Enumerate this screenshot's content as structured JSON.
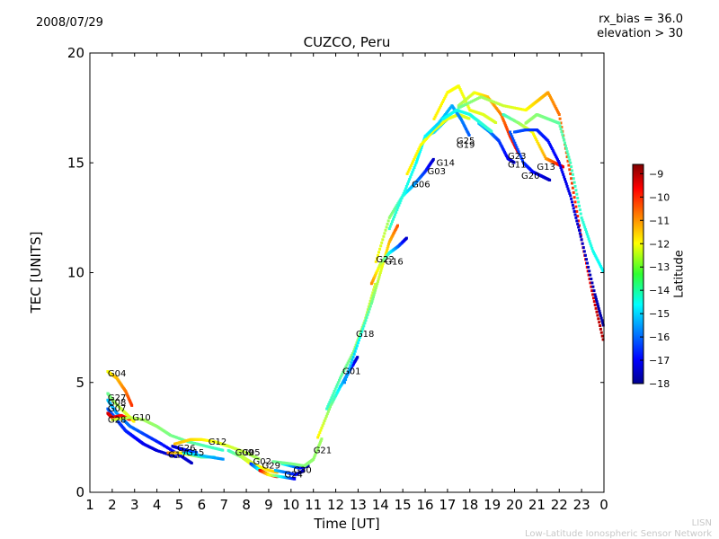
{
  "header": {
    "date": "2008/07/29",
    "rx_bias": "rx_bias = 36.0",
    "elevation": "elevation > 30"
  },
  "footer": {
    "credit_line1": "LISN",
    "credit_line2": "Low-Latitude Ionospheric Sensor Network"
  },
  "chart_data": {
    "type": "scatter",
    "title": "CUZCO, Peru",
    "xlabel": "Time [UT]",
    "ylabel": "TEC [UNITS]",
    "xlim": [
      1,
      24
    ],
    "ylim": [
      0,
      20
    ],
    "x_ticks": [
      1,
      2,
      3,
      4,
      5,
      6,
      7,
      8,
      9,
      10,
      11,
      12,
      13,
      14,
      15,
      16,
      17,
      18,
      19,
      20,
      21,
      22,
      23,
      24
    ],
    "x_tick_labels": [
      "1",
      "2",
      "3",
      "4",
      "5",
      "6",
      "7",
      "8",
      "9",
      "10",
      "11",
      "12",
      "13",
      "14",
      "15",
      "16",
      "17",
      "18",
      "19",
      "20",
      "21",
      "22",
      "23",
      "0"
    ],
    "y_ticks": [
      0,
      5,
      10,
      15,
      20
    ],
    "grid": false,
    "colorbar": {
      "label": "Latitude",
      "range": [
        -18,
        -8.6
      ],
      "ticks": [
        -9,
        -10,
        -11,
        -12,
        -13,
        -14,
        -15,
        -16,
        -17,
        -18
      ],
      "colormap": [
        "#00008f",
        "#0000ff",
        "#0080ff",
        "#00ffff",
        "#80ff80",
        "#ffff00",
        "#ff8000",
        "#ff0000",
        "#800000"
      ]
    },
    "series": [
      {
        "name": "G04",
        "label_at": [
          1.8,
          5.4
        ],
        "lat_start": -12.2,
        "lat_end": -10.2,
        "x": [
          1.8,
          2.2,
          2.6,
          2.9
        ],
        "y": [
          5.5,
          5.2,
          4.6,
          3.9
        ]
      },
      {
        "name": "G27",
        "label_at": [
          1.8,
          4.3
        ],
        "lat_start": -13.5,
        "lat_end": -12.0,
        "x": [
          1.8,
          2.1,
          2.6,
          3.0
        ],
        "y": [
          4.5,
          4.1,
          3.6,
          3.2
        ]
      },
      {
        "name": "G08",
        "label_at": [
          1.8,
          4.1
        ],
        "lat_start": -15.0,
        "lat_end": -17.5,
        "x": [
          1.8,
          2.2,
          2.8,
          3.5,
          4.2,
          5.0,
          5.6
        ],
        "y": [
          4.2,
          3.6,
          3.0,
          2.6,
          2.2,
          1.7,
          1.3
        ]
      },
      {
        "name": "G07",
        "label_at": [
          1.8,
          3.8
        ],
        "lat_start": -16.0,
        "lat_end": -17.5,
        "x": [
          1.8,
          2.2,
          2.6,
          3.0,
          3.4,
          4.0,
          4.9
        ],
        "y": [
          3.8,
          3.3,
          2.8,
          2.5,
          2.2,
          1.9,
          1.6
        ]
      },
      {
        "name": "G28",
        "label_at": [
          1.8,
          3.3
        ],
        "lat_start": -9.4,
        "lat_end": -10.0,
        "x": [
          1.8,
          2.0,
          2.4,
          2.8
        ],
        "y": [
          3.6,
          3.4,
          3.5,
          3.3
        ]
      },
      {
        "name": "G10",
        "label_at": [
          2.9,
          3.4
        ],
        "lat_start": -12.5,
        "lat_end": -14.0,
        "x": [
          2.0,
          2.8,
          3.4,
          4.0,
          4.6,
          5.4,
          6.2,
          7.0
        ],
        "y": [
          3.3,
          3.4,
          3.3,
          3.0,
          2.6,
          2.3,
          2.1,
          1.9
        ]
      },
      {
        "name": "G26",
        "label_at": [
          4.9,
          2.0
        ],
        "lat_start": -17.5,
        "lat_end": -16.0,
        "x": [
          4.7,
          5.0,
          5.4,
          5.8
        ],
        "y": [
          2.1,
          2.0,
          1.9,
          1.8
        ]
      },
      {
        "name": "G17",
        "label_at": [
          4.5,
          1.7
        ],
        "lat_start": -11.0,
        "lat_end": -14.5,
        "x": [
          4.5,
          5.0,
          5.5,
          6.0,
          6.6
        ],
        "y": [
          1.8,
          1.8,
          1.7,
          1.6,
          1.6
        ]
      },
      {
        "name": "G15",
        "label_at": [
          5.3,
          1.8
        ],
        "lat_start": -14.5,
        "lat_end": -15.5,
        "x": [
          5.2,
          5.8,
          6.4,
          7.0
        ],
        "y": [
          1.8,
          1.7,
          1.6,
          1.5
        ]
      },
      {
        "name": "G12",
        "label_at": [
          6.3,
          2.3
        ],
        "lat_start": -11.5,
        "lat_end": -13.0,
        "x": [
          4.8,
          5.5,
          6.0,
          6.6,
          7.2,
          8.0,
          8.6
        ],
        "y": [
          2.2,
          2.4,
          2.4,
          2.3,
          2.1,
          1.8,
          1.5
        ]
      },
      {
        "name": "G09",
        "label_at": [
          7.5,
          1.8
        ],
        "lat_start": -14.0,
        "lat_end": -10.0,
        "x": [
          7.2,
          7.8,
          8.2,
          8.6,
          9.0
        ],
        "y": [
          1.9,
          1.6,
          1.3,
          1.0,
          0.8
        ]
      },
      {
        "name": "G05",
        "label_at": [
          7.8,
          1.8
        ],
        "lat_start": -13.0,
        "lat_end": -11.5,
        "x": [
          7.6,
          8.0,
          8.5,
          9.0,
          9.4
        ],
        "y": [
          1.8,
          1.5,
          1.2,
          1.0,
          0.9
        ]
      },
      {
        "name": "G02",
        "label_at": [
          8.3,
          1.4
        ],
        "lat_start": -16.5,
        "lat_end": -9.5,
        "x": [
          8.2,
          8.6,
          9.0,
          9.4
        ],
        "y": [
          1.3,
          1.0,
          0.8,
          0.7
        ]
      },
      {
        "name": "G29",
        "label_at": [
          8.7,
          1.2
        ],
        "lat_start": -9.5,
        "lat_end": -17.0,
        "x": [
          8.6,
          9.0,
          9.6,
          10.2
        ],
        "y": [
          1.0,
          0.8,
          0.7,
          0.6
        ]
      },
      {
        "name": "G24",
        "label_at": [
          9.7,
          0.8
        ],
        "lat_start": -15.0,
        "lat_end": -17.5,
        "x": [
          9.3,
          9.8,
          10.2,
          10.6
        ],
        "y": [
          1.0,
          0.9,
          0.8,
          1.0
        ]
      },
      {
        "name": "G30",
        "label_at": [
          10.1,
          1.0
        ],
        "lat_start": -14.0,
        "lat_end": -17.8,
        "x": [
          9.6,
          10.0,
          10.4,
          10.8
        ],
        "y": [
          1.3,
          1.2,
          1.1,
          1.2
        ]
      },
      {
        "name": "G21",
        "label_at": [
          11.0,
          1.9
        ],
        "lat_start": -13.5,
        "lat_end": -13.0,
        "x": [
          9.2,
          10.0,
          10.6,
          11.0,
          11.4
        ],
        "y": [
          1.4,
          1.3,
          1.2,
          1.5,
          2.5
        ]
      },
      {
        "name": "G01",
        "label_at": [
          12.3,
          5.5
        ],
        "lat_start": -12.0,
        "lat_end": -17.5,
        "x": [
          11.2,
          11.8,
          12.2,
          12.6,
          13.0
        ],
        "y": [
          2.5,
          4.0,
          4.8,
          5.5,
          6.2
        ]
      },
      {
        "name": "G18",
        "label_at": [
          12.9,
          7.2
        ],
        "lat_start": -14.0,
        "lat_end": -12.5,
        "x": [
          11.6,
          12.2,
          12.8,
          13.3,
          13.8
        ],
        "y": [
          3.8,
          5.2,
          6.4,
          7.8,
          9.6
        ]
      },
      {
        "name": "G22",
        "label_at": [
          13.8,
          10.6
        ],
        "lat_start": -15.5,
        "lat_end": -10.5,
        "x": [
          12.4,
          13.0,
          13.6,
          14.0,
          14.4,
          14.8
        ],
        "y": [
          5.0,
          6.8,
          8.6,
          10.0,
          11.4,
          12.2
        ]
      },
      {
        "name": "G16",
        "label_at": [
          14.2,
          10.5
        ],
        "lat_start": -11.0,
        "lat_end": -17.5,
        "x": [
          13.6,
          14.0,
          14.4,
          14.8,
          15.2
        ],
        "y": [
          9.5,
          10.4,
          10.9,
          11.2,
          11.6
        ]
      },
      {
        "name": "G06",
        "label_at": [
          15.4,
          14.0
        ],
        "lat_start": -12.0,
        "lat_end": -17.5,
        "x": [
          13.8,
          14.4,
          15.0,
          15.5,
          16.0,
          16.4
        ],
        "y": [
          10.5,
          12.5,
          13.5,
          14.0,
          14.6,
          15.2
        ]
      },
      {
        "name": "G03",
        "label_at": [
          16.1,
          14.6
        ],
        "lat_start": -14.0,
        "lat_end": -15.0,
        "x": [
          14.4,
          15.0,
          15.6,
          16.0,
          16.4,
          17.0
        ],
        "y": [
          12.0,
          13.5,
          15.0,
          16.2,
          16.4,
          17.0
        ]
      },
      {
        "name": "G14",
        "label_at": [
          16.5,
          15.0
        ],
        "lat_start": -12.0,
        "lat_end": -12.5,
        "x": [
          15.2,
          15.8,
          16.4,
          17.0,
          17.5,
          18.0
        ],
        "y": [
          14.5,
          15.8,
          16.5,
          17.0,
          17.2,
          17.0
        ]
      },
      {
        "name": "G19",
        "label_at": [
          17.4,
          15.8
        ],
        "lat_start": -14.5,
        "lat_end": -16.0,
        "x": [
          16.0,
          16.6,
          17.2,
          17.6,
          18.0
        ],
        "y": [
          16.2,
          16.8,
          17.6,
          17.0,
          16.2
        ]
      },
      {
        "name": "G25",
        "label_at": [
          17.4,
          16.0
        ],
        "lat_start": -12.0,
        "lat_end": -12.5,
        "x": [
          16.4,
          17.0,
          17.5,
          18.0,
          18.6,
          19.2
        ],
        "y": [
          17.0,
          18.2,
          18.5,
          17.4,
          17.2,
          16.8
        ]
      },
      {
        "name": "G23",
        "label_at": [
          19.7,
          15.3
        ],
        "lat_start": -13.0,
        "lat_end": -9.5,
        "x": [
          17.5,
          18.2,
          18.8,
          19.4,
          19.8,
          20.2
        ],
        "y": [
          17.6,
          18.2,
          18.0,
          17.2,
          16.2,
          15.4
        ]
      },
      {
        "name": "G11",
        "label_at": [
          19.7,
          14.9
        ],
        "lat_start": -15.0,
        "lat_end": -17.5,
        "x": [
          18.4,
          18.9,
          19.3,
          19.7,
          20.0
        ],
        "y": [
          16.8,
          16.4,
          16.0,
          15.2,
          15.0
        ]
      },
      {
        "name": "G13",
        "label_at": [
          21.0,
          14.8
        ],
        "lat_start": -14.0,
        "lat_end": -9.5,
        "x": [
          19.5,
          20.2,
          20.8,
          21.4,
          21.8,
          22.2
        ],
        "y": [
          17.2,
          16.8,
          16.4,
          15.2,
          15.0,
          14.8
        ]
      },
      {
        "name": "G20",
        "label_at": [
          20.3,
          14.4
        ],
        "lat_start": -16.0,
        "lat_end": -17.5,
        "x": [
          19.8,
          20.4,
          20.8,
          21.2,
          21.6
        ],
        "y": [
          16.4,
          15.0,
          14.6,
          14.4,
          14.2
        ]
      },
      {
        "name": "",
        "lat_start": -13.5,
        "lat_end": -9.0,
        "x": [
          17.5,
          18.5,
          19.5,
          20.5,
          21.0,
          21.5,
          22.0,
          22.5,
          23.0,
          23.5,
          24.0
        ],
        "y": [
          17.5,
          18.0,
          17.6,
          17.4,
          17.8,
          18.2,
          17.2,
          14.5,
          11.5,
          9.0,
          6.8
        ]
      },
      {
        "name": "",
        "lat_start": -13.0,
        "lat_end": -14.5,
        "x": [
          20.5,
          21.0,
          21.5,
          22.0,
          22.5,
          23.0,
          23.5,
          24.0
        ],
        "y": [
          16.8,
          17.2,
          17.0,
          16.8,
          15.0,
          12.5,
          11.0,
          10.0
        ]
      },
      {
        "name": "",
        "lat_start": -16.0,
        "lat_end": -17.8,
        "x": [
          20.0,
          20.5,
          21.0,
          21.5,
          22.0,
          22.5,
          23.0,
          23.6,
          24.0
        ],
        "y": [
          16.4,
          16.5,
          16.5,
          16.0,
          15.0,
          13.5,
          11.5,
          9.0,
          7.5
        ]
      },
      {
        "name": "",
        "lat_start": -14.5,
        "lat_end": -14.0,
        "x": [
          16.8,
          17.4,
          18.0,
          18.5,
          19.0
        ],
        "y": [
          17.0,
          17.4,
          17.2,
          16.8,
          16.4
        ]
      }
    ]
  }
}
